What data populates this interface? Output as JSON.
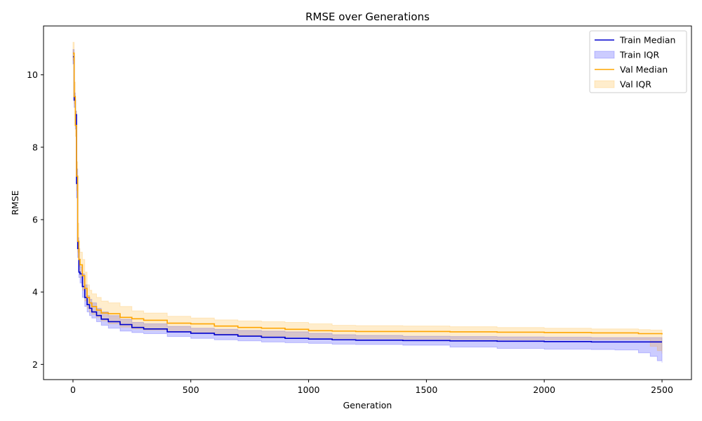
{
  "chart_data": {
    "type": "line",
    "title": "RMSE over Generations",
    "xlabel": "Generation",
    "ylabel": "RMSE",
    "xlim": [
      -125,
      2625
    ],
    "ylim": [
      1.58,
      11.35
    ],
    "xticks": [
      0,
      500,
      1000,
      1500,
      2000,
      2500
    ],
    "yticks": [
      2,
      4,
      6,
      8,
      10
    ],
    "grid": false,
    "legend_position": "top-right",
    "series": [
      {
        "name": "Train Median",
        "kind": "line",
        "color": "#0000cd",
        "x": [
          0,
          5,
          10,
          15,
          20,
          25,
          30,
          40,
          50,
          60,
          70,
          80,
          100,
          120,
          150,
          200,
          250,
          300,
          400,
          500,
          600,
          700,
          800,
          900,
          1000,
          1100,
          1200,
          1400,
          1600,
          1800,
          2000,
          2200,
          2400,
          2500
        ],
        "y": [
          10.5,
          9.3,
          8.9,
          7.0,
          5.2,
          4.55,
          4.5,
          4.15,
          3.85,
          3.65,
          3.55,
          3.45,
          3.35,
          3.25,
          3.18,
          3.1,
          3.02,
          2.98,
          2.9,
          2.86,
          2.82,
          2.78,
          2.75,
          2.72,
          2.7,
          2.68,
          2.67,
          2.66,
          2.65,
          2.64,
          2.63,
          2.62,
          2.62,
          2.62
        ]
      },
      {
        "name": "Train IQR",
        "kind": "band",
        "color": "#0000ff",
        "x": [
          0,
          5,
          10,
          15,
          20,
          25,
          30,
          40,
          50,
          60,
          70,
          80,
          100,
          120,
          150,
          200,
          250,
          300,
          400,
          500,
          600,
          700,
          800,
          900,
          1000,
          1100,
          1200,
          1400,
          1600,
          1800,
          2000,
          2200,
          2300,
          2400,
          2450,
          2480,
          2500
        ],
        "lower": [
          10.3,
          9.1,
          8.5,
          6.6,
          4.95,
          4.4,
          4.25,
          3.85,
          3.6,
          3.45,
          3.35,
          3.28,
          3.18,
          3.08,
          3.0,
          2.92,
          2.88,
          2.85,
          2.77,
          2.72,
          2.68,
          2.65,
          2.62,
          2.6,
          2.58,
          2.56,
          2.55,
          2.53,
          2.48,
          2.44,
          2.42,
          2.41,
          2.4,
          2.32,
          2.22,
          2.1,
          2.05
        ],
        "upper": [
          10.7,
          9.5,
          9.0,
          7.4,
          5.5,
          4.75,
          4.7,
          4.5,
          4.2,
          3.9,
          3.8,
          3.7,
          3.55,
          3.45,
          3.35,
          3.25,
          3.16,
          3.12,
          3.05,
          3.0,
          2.97,
          2.94,
          2.92,
          2.9,
          2.86,
          2.82,
          2.8,
          2.78,
          2.77,
          2.76,
          2.75,
          2.74,
          2.74,
          2.74,
          2.74,
          2.74,
          2.74
        ]
      },
      {
        "name": "Val Median",
        "kind": "line",
        "color": "#ffa500",
        "x": [
          0,
          5,
          10,
          15,
          20,
          25,
          30,
          40,
          50,
          60,
          70,
          80,
          100,
          120,
          150,
          200,
          250,
          300,
          400,
          500,
          600,
          700,
          800,
          900,
          1000,
          1100,
          1200,
          1400,
          1600,
          1800,
          2000,
          2200,
          2400,
          2500
        ],
        "y": [
          10.6,
          9.4,
          8.6,
          7.2,
          5.4,
          4.9,
          4.75,
          4.45,
          4.1,
          3.85,
          3.7,
          3.6,
          3.5,
          3.42,
          3.4,
          3.3,
          3.26,
          3.22,
          3.14,
          3.12,
          3.06,
          3.02,
          3.0,
          2.97,
          2.93,
          2.92,
          2.91,
          2.91,
          2.9,
          2.89,
          2.88,
          2.87,
          2.85,
          2.83
        ]
      },
      {
        "name": "Val IQR",
        "kind": "band",
        "color": "#ffa500",
        "x": [
          0,
          5,
          10,
          15,
          20,
          25,
          30,
          40,
          50,
          60,
          70,
          80,
          100,
          120,
          150,
          200,
          250,
          300,
          400,
          500,
          600,
          700,
          800,
          900,
          1000,
          1100,
          1200,
          1400,
          1600,
          1800,
          2000,
          2200,
          2400,
          2450,
          2480,
          2500
        ],
        "lower": [
          10.4,
          9.2,
          8.3,
          6.8,
          5.1,
          4.55,
          4.4,
          4.05,
          3.75,
          3.55,
          3.45,
          3.38,
          3.3,
          3.2,
          3.12,
          3.03,
          2.98,
          2.95,
          2.9,
          2.86,
          2.83,
          2.8,
          2.78,
          2.76,
          2.74,
          2.72,
          2.71,
          2.7,
          2.69,
          2.68,
          2.68,
          2.68,
          2.68,
          2.5,
          2.38,
          2.3
        ],
        "upper": [
          10.9,
          9.8,
          9.0,
          7.6,
          5.9,
          5.2,
          5.1,
          4.9,
          4.55,
          4.2,
          4.05,
          3.95,
          3.85,
          3.75,
          3.7,
          3.6,
          3.48,
          3.42,
          3.33,
          3.28,
          3.23,
          3.2,
          3.18,
          3.16,
          3.12,
          3.08,
          3.07,
          3.06,
          3.04,
          3.02,
          3.0,
          2.98,
          2.96,
          2.95,
          2.95,
          2.95
        ]
      }
    ]
  }
}
